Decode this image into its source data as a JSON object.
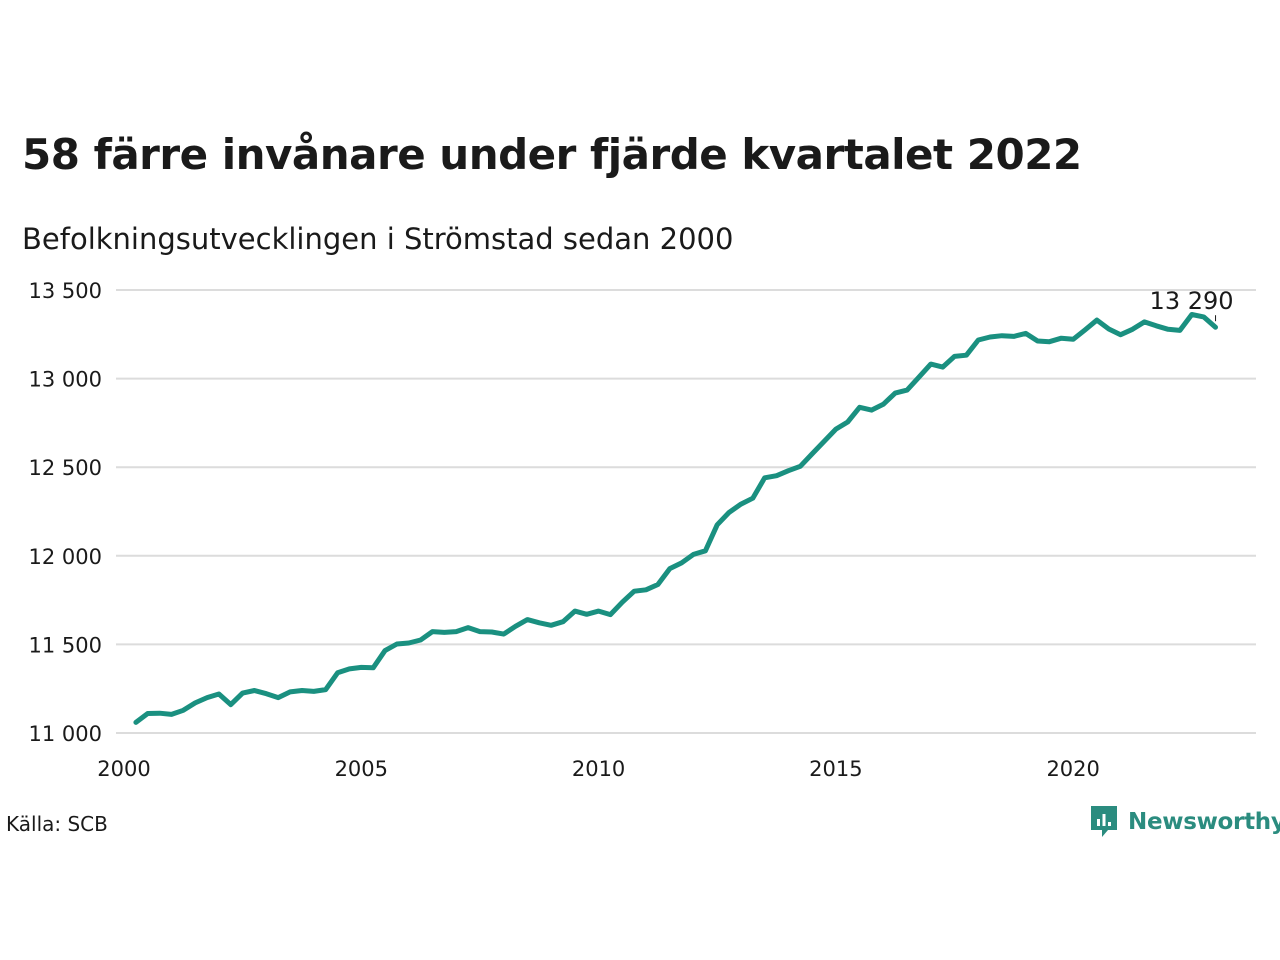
{
  "title": "58 färre invånare under fjärde kvartalet 2022",
  "subtitle": "Befolkningsutvecklingen i Strömstad sedan 2000",
  "source": "Källa: SCB",
  "brand": {
    "name": "Newsworthy",
    "icon": "newsworthy-logo-icon",
    "color": "#2b8c7f"
  },
  "chart_data": {
    "type": "line",
    "title": "58 färre invånare under fjärde kvartalet 2022",
    "subtitle": "Befolkningsutvecklingen i Strömstad sedan 2000",
    "xlabel": "",
    "ylabel": "",
    "xlim": [
      2000,
      2024
    ],
    "ylim": [
      11000,
      13500
    ],
    "grid": true,
    "line_color": "#1a9080",
    "yticks": [
      11000,
      11500,
      12000,
      12500,
      13000,
      13500
    ],
    "ytick_labels": [
      "11 000",
      "11 500",
      "12 000",
      "12 500",
      "13 000",
      "13 500"
    ],
    "xticks": [
      2000,
      2005,
      2010,
      2015,
      2020
    ],
    "xtick_labels": [
      "2000",
      "2005",
      "2010",
      "2015",
      "2020"
    ],
    "end_label": "13 290",
    "series": [
      {
        "x": [
          2000.25,
          2000.5,
          2000.75,
          2001.0,
          2001.25,
          2001.5,
          2001.75,
          2002.0,
          2002.25,
          2002.5,
          2002.75,
          2003.0,
          2003.25,
          2003.5,
          2003.75,
          2004.0,
          2004.25,
          2004.5,
          2004.75,
          2005.0,
          2005.25,
          2005.5,
          2005.75,
          2006.0,
          2006.25,
          2006.5,
          2006.75,
          2007.0,
          2007.25,
          2007.5,
          2007.75,
          2008.0,
          2008.25,
          2008.5,
          2008.75,
          2009.0,
          2009.25,
          2009.5,
          2009.75,
          2010.0,
          2010.25,
          2010.5,
          2010.75,
          2011.0,
          2011.25,
          2011.5,
          2011.75,
          2012.0,
          2012.25,
          2012.5,
          2012.75,
          2013.0,
          2013.25,
          2013.5,
          2013.75,
          2014.0,
          2014.25,
          2014.5,
          2014.75,
          2015.0,
          2015.25,
          2015.5,
          2015.75,
          2016.0,
          2016.25,
          2016.5,
          2016.75,
          2017.0,
          2017.25,
          2017.5,
          2017.75,
          2018.0,
          2018.25,
          2018.5,
          2018.75,
          2019.0,
          2019.25,
          2019.5,
          2019.75,
          2020.0,
          2020.25,
          2020.5,
          2020.75,
          2021.0,
          2021.25,
          2021.5,
          2021.75,
          2022.0,
          2022.25,
          2022.5,
          2022.75,
          2023.0
        ],
        "values": [
          11060,
          11110,
          11112,
          11105,
          11128,
          11170,
          11200,
          11220,
          11160,
          11225,
          11240,
          11222,
          11200,
          11232,
          11240,
          11235,
          11245,
          11340,
          11362,
          11370,
          11368,
          11465,
          11502,
          11508,
          11525,
          11572,
          11568,
          11572,
          11595,
          11572,
          11570,
          11558,
          11602,
          11640,
          11622,
          11608,
          11628,
          11688,
          11670,
          11688,
          11668,
          11738,
          11800,
          11808,
          11838,
          11928,
          11960,
          12008,
          12028,
          12175,
          12245,
          12292,
          12325,
          12440,
          12452,
          12480,
          12505,
          12575,
          12645,
          12715,
          12755,
          12838,
          12822,
          12855,
          12918,
          12935,
          13008,
          13082,
          13065,
          13125,
          13132,
          13218,
          13235,
          13242,
          13238,
          13255,
          13212,
          13208,
          13228,
          13222,
          13275,
          13330,
          13280,
          13248,
          13278,
          13320,
          13298,
          13278,
          13272,
          13362,
          13348,
          13290
        ]
      }
    ]
  }
}
